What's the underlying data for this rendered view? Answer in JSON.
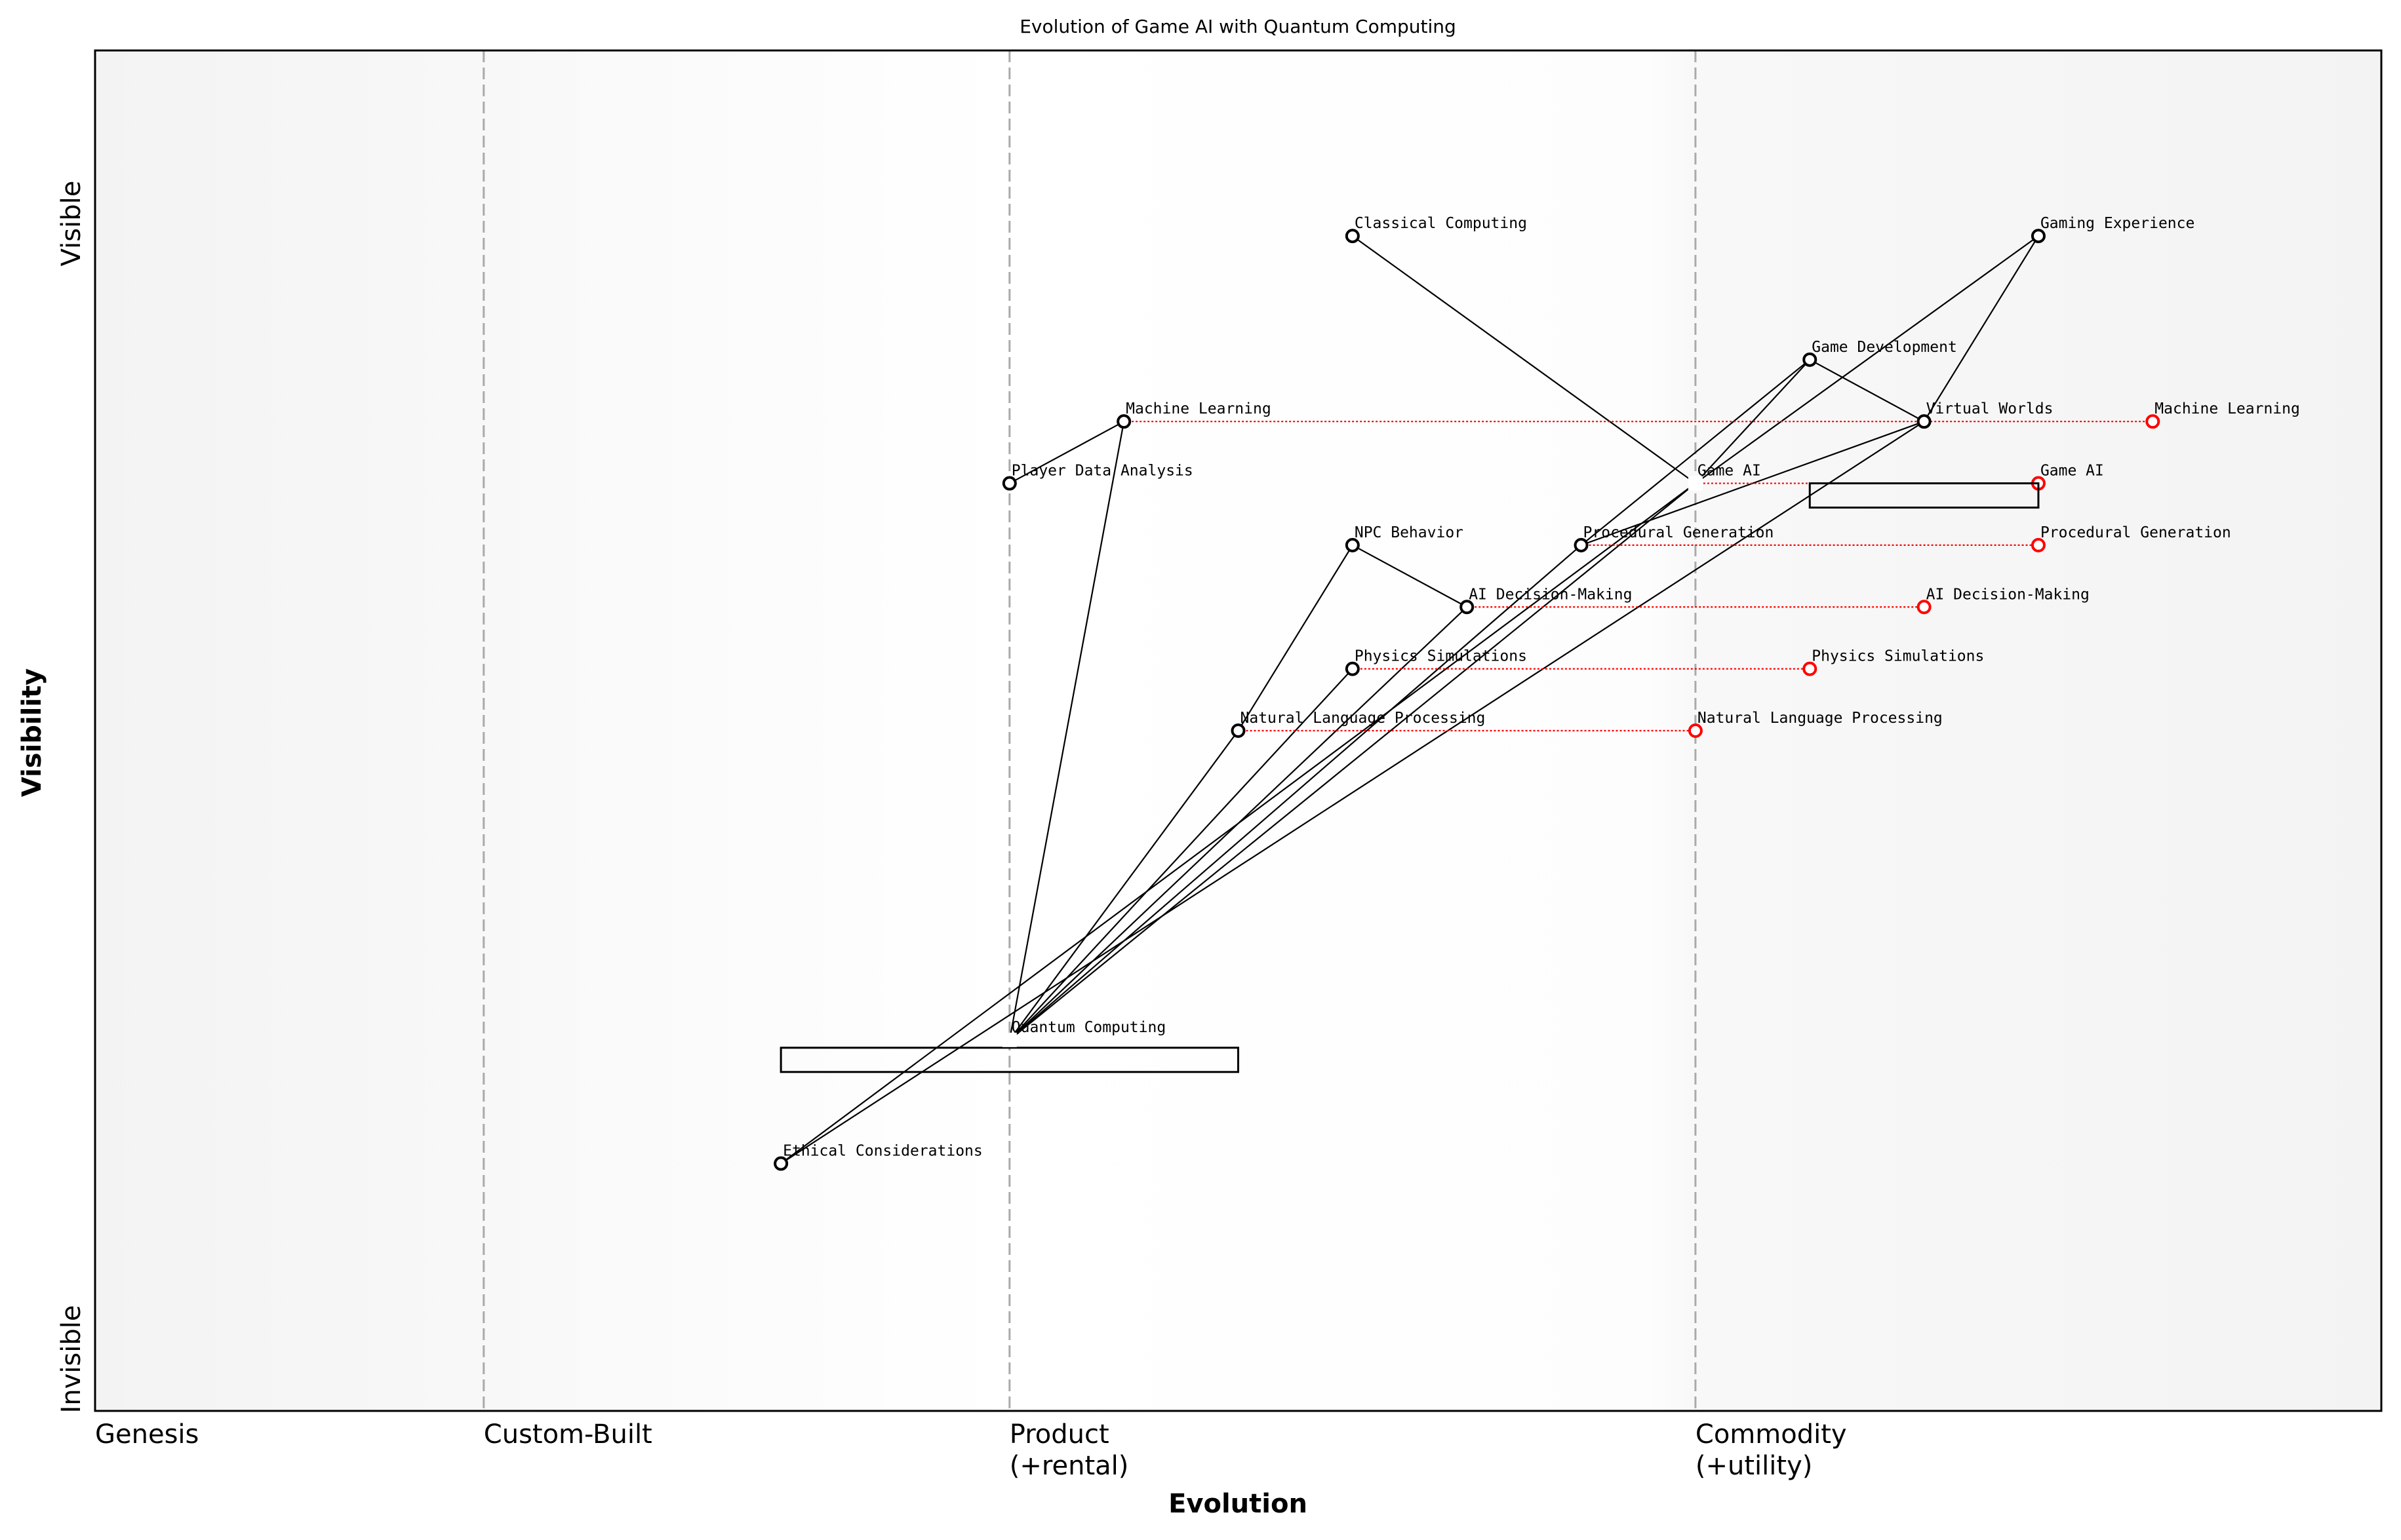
{
  "title": "Evolution of Game AI with Quantum Computing",
  "x_axis": {
    "label": "Evolution",
    "stages": [
      {
        "name": "Genesis",
        "at": 0.0
      },
      {
        "name": "Custom-Built",
        "at": 0.17
      },
      {
        "name": "Product\n(+rental)",
        "at": 0.4
      },
      {
        "name": "Commodity\n(+utility)",
        "at": 0.7
      }
    ],
    "range": [
      0,
      1
    ]
  },
  "y_axis": {
    "label": "Visibility",
    "top_label": "Visible",
    "bottom_label": "Invisible",
    "range": [
      0,
      1.1
    ]
  },
  "colors": {
    "node": "#000000",
    "evolved": "#ff0000",
    "stage_divider": "#aaaaaa",
    "band_edge": "#f3f3f3"
  },
  "chart_data": {
    "type": "wardley-map",
    "components": [
      {
        "name": "Classical Computing",
        "evolution": 0.55,
        "visibility": 0.95
      },
      {
        "name": "Gaming Experience",
        "evolution": 0.85,
        "visibility": 0.95
      },
      {
        "name": "Game Development",
        "evolution": 0.75,
        "visibility": 0.85
      },
      {
        "name": "Virtual Worlds",
        "evolution": 0.8,
        "visibility": 0.8
      },
      {
        "name": "Machine Learning",
        "evolution": 0.45,
        "visibility": 0.8
      },
      {
        "name": "Player Data Analysis",
        "evolution": 0.4,
        "visibility": 0.75
      },
      {
        "name": "Game AI",
        "evolution": 0.7,
        "visibility": 0.75,
        "pipeline": [
          0.75,
          0.85
        ]
      },
      {
        "name": "NPC Behavior",
        "evolution": 0.55,
        "visibility": 0.7
      },
      {
        "name": "Procedural Generation",
        "evolution": 0.65,
        "visibility": 0.7
      },
      {
        "name": "AI Decision-Making",
        "evolution": 0.6,
        "visibility": 0.65
      },
      {
        "name": "Physics Simulations",
        "evolution": 0.55,
        "visibility": 0.6
      },
      {
        "name": "Natural Language Processing",
        "evolution": 0.5,
        "visibility": 0.55
      },
      {
        "name": "Quantum Computing",
        "evolution": 0.4,
        "visibility": 0.3,
        "pipeline": [
          0.3,
          0.5
        ]
      },
      {
        "name": "Ethical Considerations",
        "evolution": 0.3,
        "visibility": 0.2
      }
    ],
    "evolve": [
      {
        "name": "Machine Learning",
        "to": 0.9
      },
      {
        "name": "Game AI",
        "to": 0.85
      },
      {
        "name": "Procedural Generation",
        "to": 0.85
      },
      {
        "name": "AI Decision-Making",
        "to": 0.8
      },
      {
        "name": "Physics Simulations",
        "to": 0.75
      },
      {
        "name": "Natural Language Processing",
        "to": 0.7
      }
    ],
    "links": [
      [
        "Gaming Experience",
        "Game AI"
      ],
      [
        "Gaming Experience",
        "Virtual Worlds"
      ],
      [
        "Game Development",
        "Virtual Worlds"
      ],
      [
        "Game Development",
        "Procedural Generation"
      ],
      [
        "Game Development",
        "Game AI"
      ],
      [
        "Virtual Worlds",
        "Procedural Generation"
      ],
      [
        "Virtual Worlds",
        "Ethical Considerations"
      ],
      [
        "Game AI",
        "Ethical Considerations"
      ],
      [
        "Classical Computing",
        "Game AI"
      ],
      [
        "Game AI",
        "Quantum Computing"
      ],
      [
        "Machine Learning",
        "Player Data Analysis"
      ],
      [
        "Machine Learning",
        "Quantum Computing"
      ],
      [
        "NPC Behavior",
        "AI Decision-Making"
      ],
      [
        "NPC Behavior",
        "Natural Language Processing"
      ],
      [
        "Natural Language Processing",
        "Quantum Computing"
      ],
      [
        "Physics Simulations",
        "Quantum Computing"
      ],
      [
        "AI Decision-Making",
        "Quantum Computing"
      ],
      [
        "Procedural Generation",
        "Quantum Computing"
      ]
    ]
  }
}
